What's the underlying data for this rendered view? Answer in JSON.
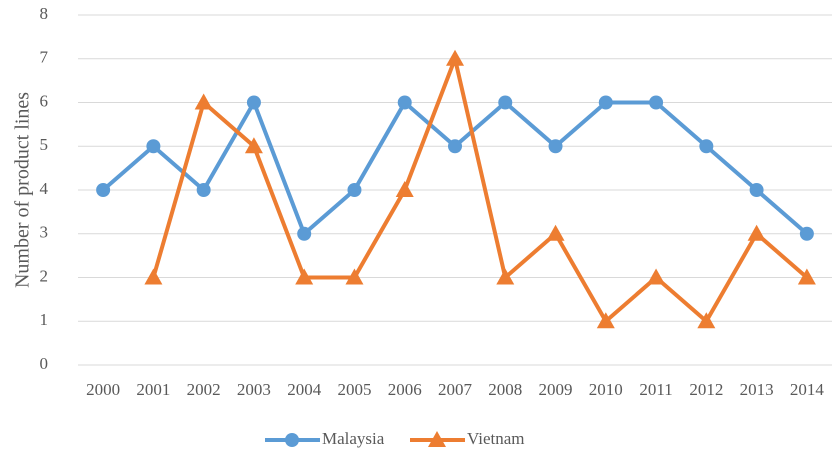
{
  "chart_data": {
    "type": "line",
    "y_label": "Number of product lines",
    "categories": [
      "2000",
      "2001",
      "2002",
      "2003",
      "2004",
      "2005",
      "2006",
      "2007",
      "2008",
      "2009",
      "2010",
      "2011",
      "2012",
      "2013",
      "2014"
    ],
    "series": [
      {
        "name": "Malaysia",
        "color": "#5b9bd5",
        "marker": "circle",
        "values": [
          4,
          5,
          4,
          6,
          3,
          4,
          6,
          5,
          6,
          5,
          6,
          6,
          5,
          4,
          3
        ]
      },
      {
        "name": "Vietnam",
        "color": "#ed7d31",
        "marker": "triangle",
        "values": [
          null,
          2,
          6,
          5,
          2,
          2,
          4,
          7,
          2,
          3,
          1,
          2,
          1,
          3,
          2
        ]
      }
    ],
    "ylim": [
      0,
      8
    ],
    "yticks": [
      0,
      1,
      2,
      3,
      4,
      5,
      6,
      7,
      8
    ],
    "grid": true,
    "legend": "bottom"
  }
}
